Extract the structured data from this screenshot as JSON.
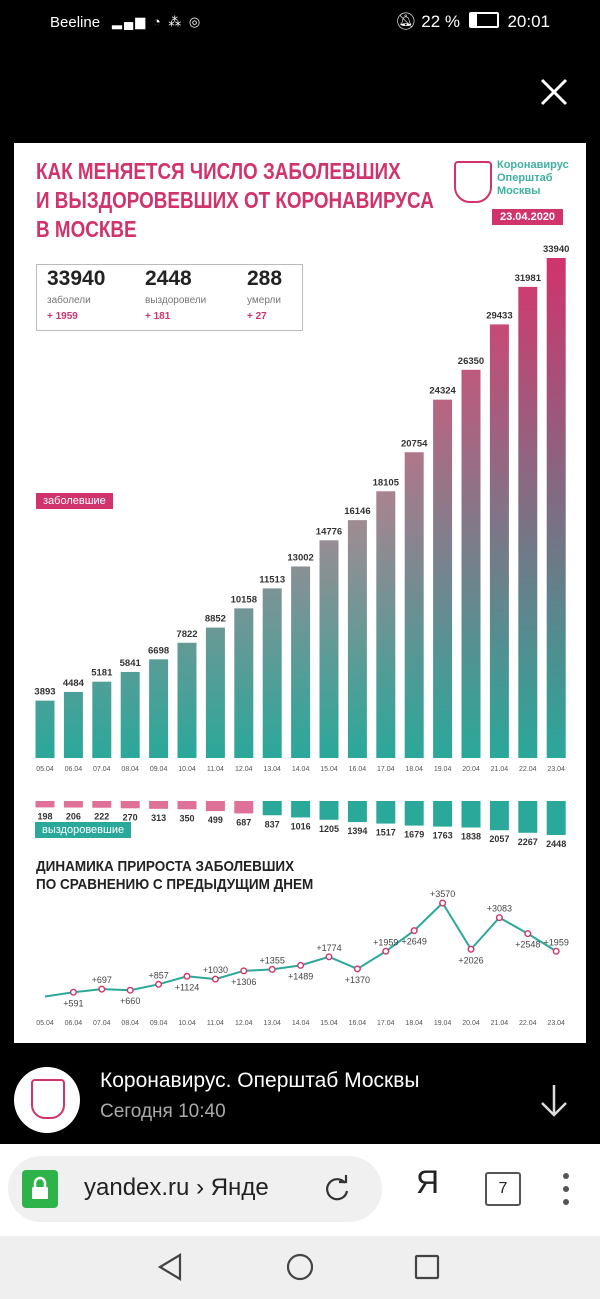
{
  "status_bar": {
    "carrier": "Beeline",
    "battery_text": "22 %",
    "time": "20:01"
  },
  "infographic": {
    "title_lines": [
      "КАК МЕНЯЕТСЯ ЧИСЛО ЗАБОЛЕВШИХ",
      "И ВЫЗДОРОВЕВШИХ ОТ КОРОНАВИРУСА",
      "В МОСКВЕ"
    ],
    "org_name_lines": [
      "Коронавирус",
      "Оперштаб",
      "Москвы"
    ],
    "date": "23.04.2020",
    "stats": [
      {
        "value": "33940",
        "label": "заболели",
        "increment": "+ 1959"
      },
      {
        "value": "2448",
        "label": "выздоровели",
        "increment": "+ 181"
      },
      {
        "value": "288",
        "label": "умерли",
        "increment": "+ 27"
      }
    ],
    "legend_sick": "заболевшие",
    "legend_recovered": "выздоровевшие",
    "subtitle_lines": [
      "ДИНАМИКА ПРИРОСТА ЗАБОЛЕВШИХ",
      "ПО СРАВНЕНИЮ С ПРЕДЫДУЩИМ ДНЕМ"
    ],
    "colors": {
      "accent": "#d1336c",
      "teal": "#2aa89a"
    }
  },
  "chart_data": [
    {
      "type": "bar",
      "categories": [
        "05.04",
        "06.04",
        "07.04",
        "08.04",
        "09.04",
        "10.04",
        "11.04",
        "12.04",
        "13.04",
        "14.04",
        "15.04",
        "16.04",
        "17.04",
        "18.04",
        "19.04",
        "20.04",
        "21.04",
        "22.04",
        "23.04"
      ],
      "series": [
        {
          "name": "заболевшие",
          "values": [
            3893,
            4484,
            5181,
            5841,
            6698,
            7822,
            8852,
            10158,
            11513,
            13002,
            14776,
            16146,
            18105,
            20754,
            24324,
            26350,
            29433,
            31981,
            33940
          ]
        },
        {
          "name": "выздоровевшие",
          "values": [
            198,
            206,
            222,
            270,
            313,
            350,
            499,
            687,
            837,
            1016,
            1205,
            1394,
            1517,
            1679,
            1763,
            1838,
            2057,
            2267,
            2448
          ]
        }
      ]
    },
    {
      "type": "line",
      "categories": [
        "05.04",
        "06.04",
        "07.04",
        "08.04",
        "09.04",
        "10.04",
        "11.04",
        "12.04",
        "13.04",
        "14.04",
        "15.04",
        "16.04",
        "17.04",
        "18.04",
        "19.04",
        "20.04",
        "21.04",
        "22.04",
        "23.04"
      ],
      "values": [
        null,
        591,
        697,
        660,
        857,
        1124,
        1030,
        1306,
        1355,
        1489,
        1774,
        1370,
        1959,
        2649,
        3570,
        2026,
        3083,
        2548,
        1959
      ],
      "labels": [
        "",
        "+591",
        "+697",
        "+660",
        "+857",
        "+1124",
        "+1030",
        "+1306",
        "+1355",
        "+1489",
        "+1774",
        "+1370",
        "+1959",
        "+2649",
        "+3570",
        "+2026",
        "+3083",
        "+2548",
        "+1959"
      ],
      "title": "ДИНАМИКА ПРИРОСТА ЗАБОЛЕВШИХ ПО СРАВНЕНИЮ С ПРЕДЫДУЩИМ ДНЕМ"
    }
  ],
  "channel": {
    "name": "Коронавирус. Оперштаб Москвы",
    "time": "Сегодня 10:40"
  },
  "browser": {
    "url": "yandex.ru › Янде",
    "ya_label": "Я",
    "tabs_count": "7"
  }
}
